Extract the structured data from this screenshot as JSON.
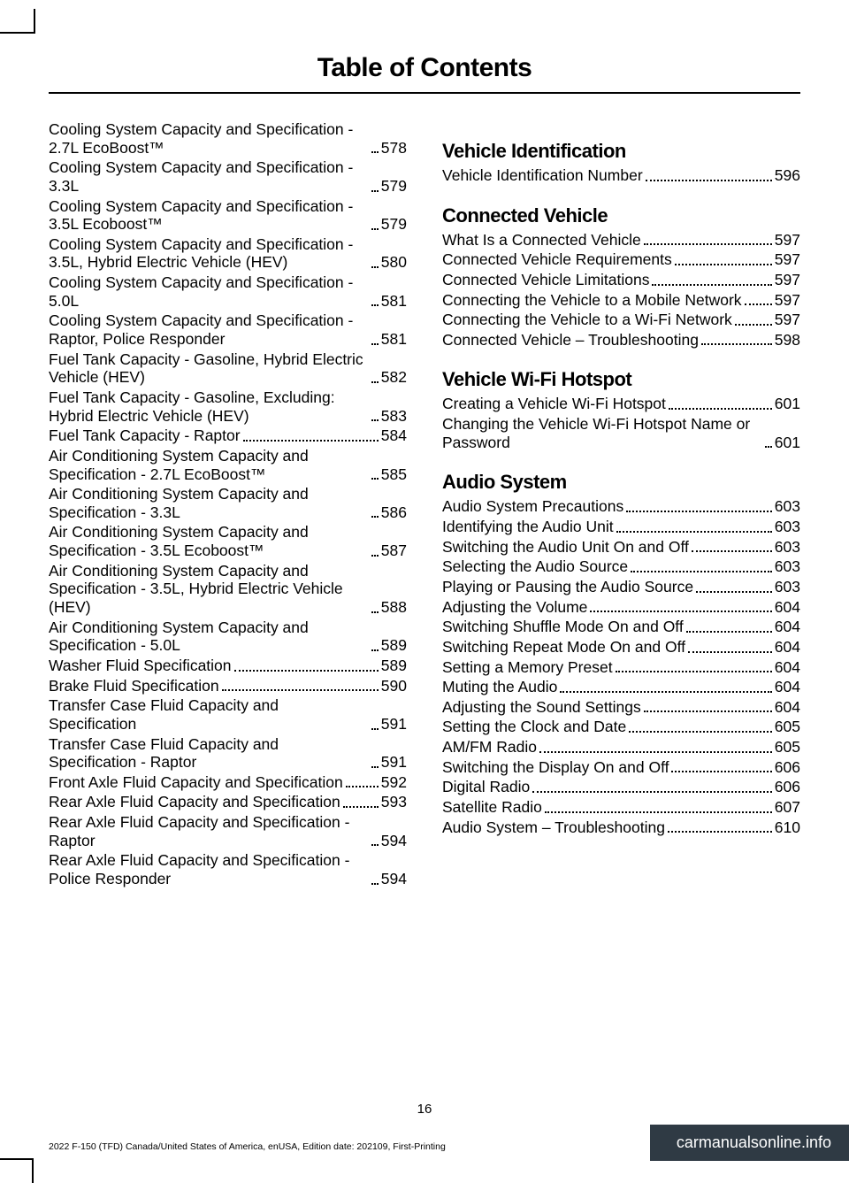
{
  "page_title": "Table of Contents",
  "page_number": "16",
  "edition_line": "2022 F-150 (TFD) Canada/United States of America, enUSA, Edition date: 202109, First-Printing",
  "brand_footer": "carmanualsonline.info",
  "left_entries": [
    {
      "label": "Cooling System Capacity and Specification - 2.7L EcoBoost™",
      "page": "578"
    },
    {
      "label": "Cooling System Capacity and Specification - 3.3L",
      "page": "579"
    },
    {
      "label": "Cooling System Capacity and Specification - 3.5L Ecoboost™",
      "page": "579"
    },
    {
      "label": "Cooling System Capacity and Specification - 3.5L, Hybrid Electric Vehicle (HEV)",
      "page": "580"
    },
    {
      "label": "Cooling System Capacity and Specification - 5.0L",
      "page": "581"
    },
    {
      "label": "Cooling System Capacity and Specification - Raptor, Police Responder",
      "page": "581"
    },
    {
      "label": "Fuel Tank Capacity - Gasoline, Hybrid Electric Vehicle (HEV)",
      "page": "582"
    },
    {
      "label": "Fuel Tank Capacity - Gasoline, Excluding: Hybrid Electric Vehicle (HEV)",
      "page": "583"
    },
    {
      "label": "Fuel Tank Capacity - Raptor",
      "page": "584"
    },
    {
      "label": "Air Conditioning System Capacity and Specification - 2.7L EcoBoost™",
      "page": "585"
    },
    {
      "label": "Air Conditioning System Capacity and Specification - 3.3L",
      "page": "586"
    },
    {
      "label": "Air Conditioning System Capacity and Specification - 3.5L Ecoboost™",
      "page": "587"
    },
    {
      "label": "Air Conditioning System Capacity and Specification - 3.5L, Hybrid Electric Vehicle (HEV)",
      "page": "588"
    },
    {
      "label": "Air Conditioning System Capacity and Specification - 5.0L",
      "page": "589"
    },
    {
      "label": "Washer Fluid Specification",
      "page": "589"
    },
    {
      "label": "Brake Fluid Specification",
      "page": "590"
    },
    {
      "label": "Transfer Case Fluid Capacity and Specification",
      "page": "591"
    },
    {
      "label": "Transfer Case Fluid Capacity and Specification - Raptor",
      "page": "591"
    },
    {
      "label": "Front Axle Fluid Capacity and Specification",
      "page": "592"
    },
    {
      "label": "Rear Axle Fluid Capacity and Specification",
      "page": "593"
    },
    {
      "label": "Rear Axle Fluid Capacity and Specification - Raptor",
      "page": "594"
    },
    {
      "label": "Rear Axle Fluid Capacity and Specification - Police Responder",
      "page": "594"
    }
  ],
  "right_sections": [
    {
      "heading": "Vehicle Identification",
      "entries": [
        {
          "label": "Vehicle Identification Number",
          "page": "596"
        }
      ]
    },
    {
      "heading": "Connected Vehicle",
      "entries": [
        {
          "label": "What Is a Connected Vehicle",
          "page": "597"
        },
        {
          "label": "Connected Vehicle Requirements",
          "page": "597"
        },
        {
          "label": "Connected Vehicle Limitations",
          "page": "597"
        },
        {
          "label": "Connecting the Vehicle to a Mobile Network",
          "page": "597"
        },
        {
          "label": "Connecting the Vehicle to a Wi-Fi Network",
          "page": "597"
        },
        {
          "label": "Connected Vehicle – Troubleshooting",
          "page": "598"
        }
      ]
    },
    {
      "heading": "Vehicle Wi-Fi Hotspot",
      "entries": [
        {
          "label": "Creating a Vehicle Wi-Fi Hotspot",
          "page": "601"
        },
        {
          "label": "Changing the Vehicle Wi-Fi Hotspot Name or Password",
          "page": "601"
        }
      ]
    },
    {
      "heading": "Audio System",
      "entries": [
        {
          "label": "Audio System Precautions",
          "page": "603"
        },
        {
          "label": "Identifying the Audio Unit",
          "page": "603"
        },
        {
          "label": "Switching the Audio Unit On and Off",
          "page": "603"
        },
        {
          "label": "Selecting the Audio Source",
          "page": "603"
        },
        {
          "label": "Playing or Pausing the Audio Source",
          "page": "603"
        },
        {
          "label": "Adjusting the Volume",
          "page": "604"
        },
        {
          "label": "Switching Shuffle Mode On and Off",
          "page": "604"
        },
        {
          "label": "Switching Repeat Mode On and Off",
          "page": "604"
        },
        {
          "label": "Setting a Memory Preset",
          "page": "604"
        },
        {
          "label": "Muting the Audio",
          "page": "604"
        },
        {
          "label": "Adjusting the Sound Settings",
          "page": "604"
        },
        {
          "label": "Setting the Clock and Date",
          "page": "605"
        },
        {
          "label": "AM/FM Radio",
          "page": "605"
        },
        {
          "label": "Switching the Display On and Off",
          "page": "606"
        },
        {
          "label": "Digital Radio",
          "page": "606"
        },
        {
          "label": "Satellite Radio",
          "page": "607"
        },
        {
          "label": "Audio System – Troubleshooting",
          "page": "610"
        }
      ]
    }
  ]
}
